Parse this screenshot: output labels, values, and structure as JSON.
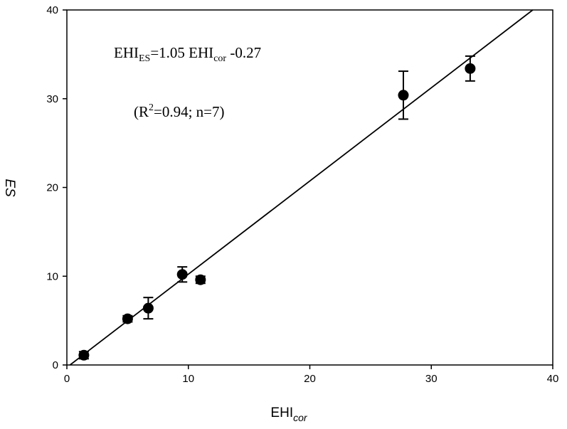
{
  "chart_data": {
    "type": "scatter",
    "xlabel": "EHI",
    "xlabel_sub": "cor",
    "ylabel": "ES",
    "xlim": [
      0,
      40
    ],
    "ylim": [
      0,
      40
    ],
    "xticks": [
      0,
      10,
      20,
      30,
      40
    ],
    "yticks": [
      0,
      10,
      20,
      30,
      40
    ],
    "grid": false,
    "points": [
      {
        "x": 1.4,
        "y": 1.1,
        "err": 0.4
      },
      {
        "x": 5.0,
        "y": 5.2,
        "err": 0.35
      },
      {
        "x": 6.7,
        "y": 6.4,
        "err": 1.2
      },
      {
        "x": 9.5,
        "y": 10.2,
        "err": 0.85
      },
      {
        "x": 11.0,
        "y": 9.6,
        "err": 0.4
      },
      {
        "x": 27.7,
        "y": 30.4,
        "err": 2.7
      },
      {
        "x": 33.2,
        "y": 33.4,
        "err": 1.4
      }
    ],
    "fit": {
      "slope": 1.05,
      "intercept": -0.27
    },
    "annotation": {
      "eq_a": "EHI",
      "eq_a_sub": "ES",
      "eq_b": "=1.05 EHI",
      "eq_b_sub": "cor",
      "eq_c": " -0.27",
      "stats_a": "(R",
      "stats_sup": "2",
      "stats_b": "=0.94; n=7)"
    }
  }
}
